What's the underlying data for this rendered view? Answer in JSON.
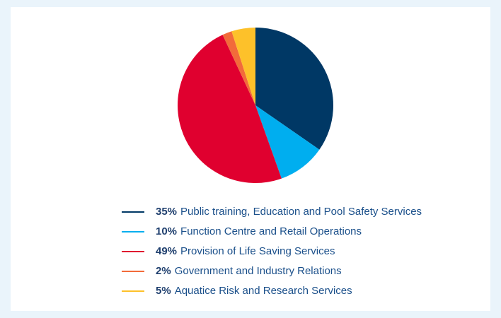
{
  "chart_data": {
    "type": "pie",
    "categories": [
      "Public training, Education and Pool Safety Services",
      "Function Centre and Retail Operations",
      "Provision of Life Saving Services",
      "Government and Industry Relations",
      "Aquatice Risk and Research Services"
    ],
    "values": [
      35,
      10,
      49,
      2,
      5
    ],
    "value_labels": [
      "35%",
      "10%",
      "49%",
      "2%",
      "5%"
    ],
    "colors": [
      "#003865",
      "#00aeef",
      "#e0002f",
      "#f26b3a",
      "#fdc12a"
    ]
  }
}
